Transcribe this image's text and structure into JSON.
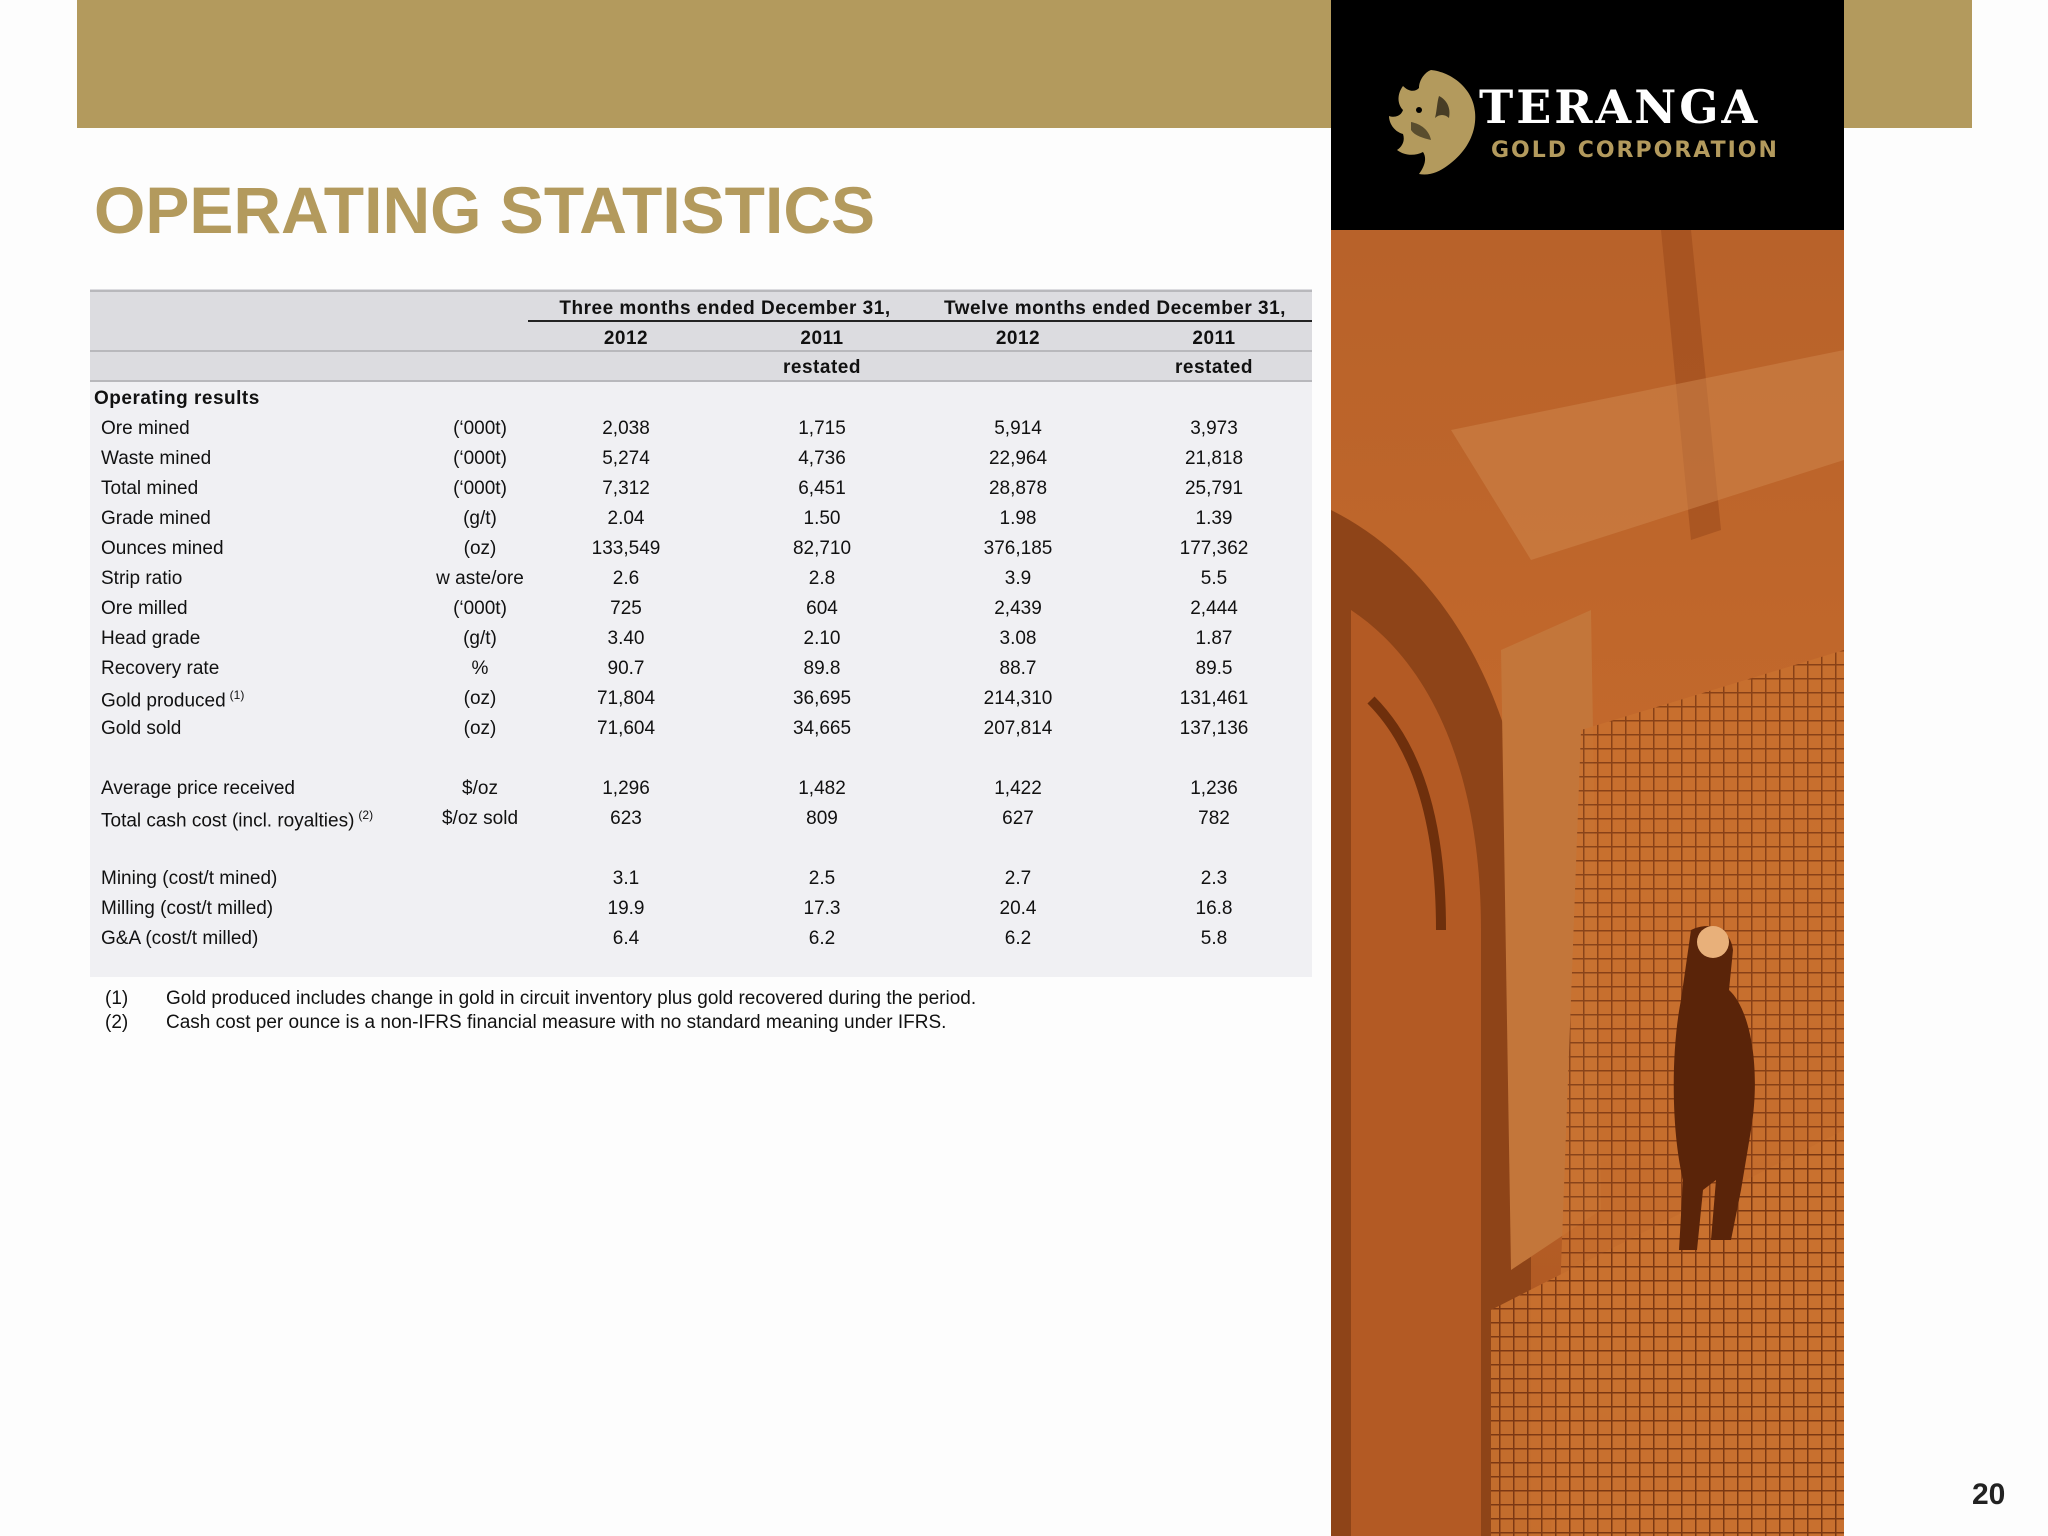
{
  "title": "OPERATING STATISTICS",
  "logo": {
    "name": "TERANGA",
    "sub": "GOLD CORPORATION"
  },
  "table": {
    "group_headers": [
      "Three months ended December 31,",
      "Twelve months ended December 31,"
    ],
    "years": [
      "2012",
      "2011",
      "2012",
      "2011"
    ],
    "restated": [
      "",
      "restated",
      "",
      "restated"
    ],
    "section_label": "Operating results",
    "rows": [
      {
        "label": "Ore mined",
        "sup": "",
        "unit": "(‘000t)",
        "values": [
          "2,038",
          "1,715",
          "5,914",
          "3,973"
        ]
      },
      {
        "label": "Waste mined",
        "sup": "",
        "unit": "(‘000t)",
        "values": [
          "5,274",
          "4,736",
          "22,964",
          "21,818"
        ]
      },
      {
        "label": "Total mined",
        "sup": "",
        "unit": "(‘000t)",
        "values": [
          "7,312",
          "6,451",
          "28,878",
          "25,791"
        ]
      },
      {
        "label": "Grade mined",
        "sup": "",
        "unit": "(g/t)",
        "values": [
          "2.04",
          "1.50",
          "1.98",
          "1.39"
        ]
      },
      {
        "label": "Ounces mined",
        "sup": "",
        "unit": "(oz)",
        "values": [
          "133,549",
          "82,710",
          "376,185",
          "177,362"
        ]
      },
      {
        "label": "Strip ratio",
        "sup": "",
        "unit": "w aste/ore",
        "values": [
          "2.6",
          "2.8",
          "3.9",
          "5.5"
        ]
      },
      {
        "label": "Ore milled",
        "sup": "",
        "unit": "(‘000t)",
        "values": [
          "725",
          "604",
          "2,439",
          "2,444"
        ]
      },
      {
        "label": "Head grade",
        "sup": "",
        "unit": "(g/t)",
        "values": [
          "3.40",
          "2.10",
          "3.08",
          "1.87"
        ]
      },
      {
        "label": "Recovery rate",
        "sup": "",
        "unit": "%",
        "values": [
          "90.7",
          "89.8",
          "88.7",
          "89.5"
        ]
      },
      {
        "label": "Gold produced",
        "sup": "(1)",
        "unit": "(oz)",
        "values": [
          "71,804",
          "36,695",
          "214,310",
          "131,461"
        ]
      },
      {
        "label": "Gold sold",
        "sup": "",
        "unit": "(oz)",
        "values": [
          "71,604",
          "34,665",
          "207,814",
          "137,136"
        ]
      },
      {
        "label": "Average price received",
        "sup": "",
        "unit": "$/oz",
        "values": [
          "1,296",
          "1,482",
          "1,422",
          "1,236"
        ]
      },
      {
        "label": "Total cash cost (incl. royalties)",
        "sup": "(2)",
        "unit": "$/oz sold",
        "values": [
          "623",
          "809",
          "627",
          "782"
        ]
      },
      {
        "label": "Mining (cost/t mined)",
        "sup": "",
        "unit": "",
        "values": [
          "3.1",
          "2.5",
          "2.7",
          "2.3"
        ]
      },
      {
        "label": "Milling (cost/t milled)",
        "sup": "",
        "unit": "",
        "values": [
          "19.9",
          "17.3",
          "20.4",
          "16.8"
        ]
      },
      {
        "label": "G&A (cost/t milled)",
        "sup": "",
        "unit": "",
        "values": [
          "6.4",
          "6.2",
          "6.2",
          "5.8"
        ]
      }
    ]
  },
  "footnotes": [
    {
      "marker": "(1)",
      "text": "Gold produced includes change in gold in circuit inventory plus gold recovered during the period."
    },
    {
      "marker": "(2)",
      "text": "Cash cost per ounce is a non-IFRS financial measure with no standard meaning under IFRS."
    }
  ],
  "page_number": "20"
}
